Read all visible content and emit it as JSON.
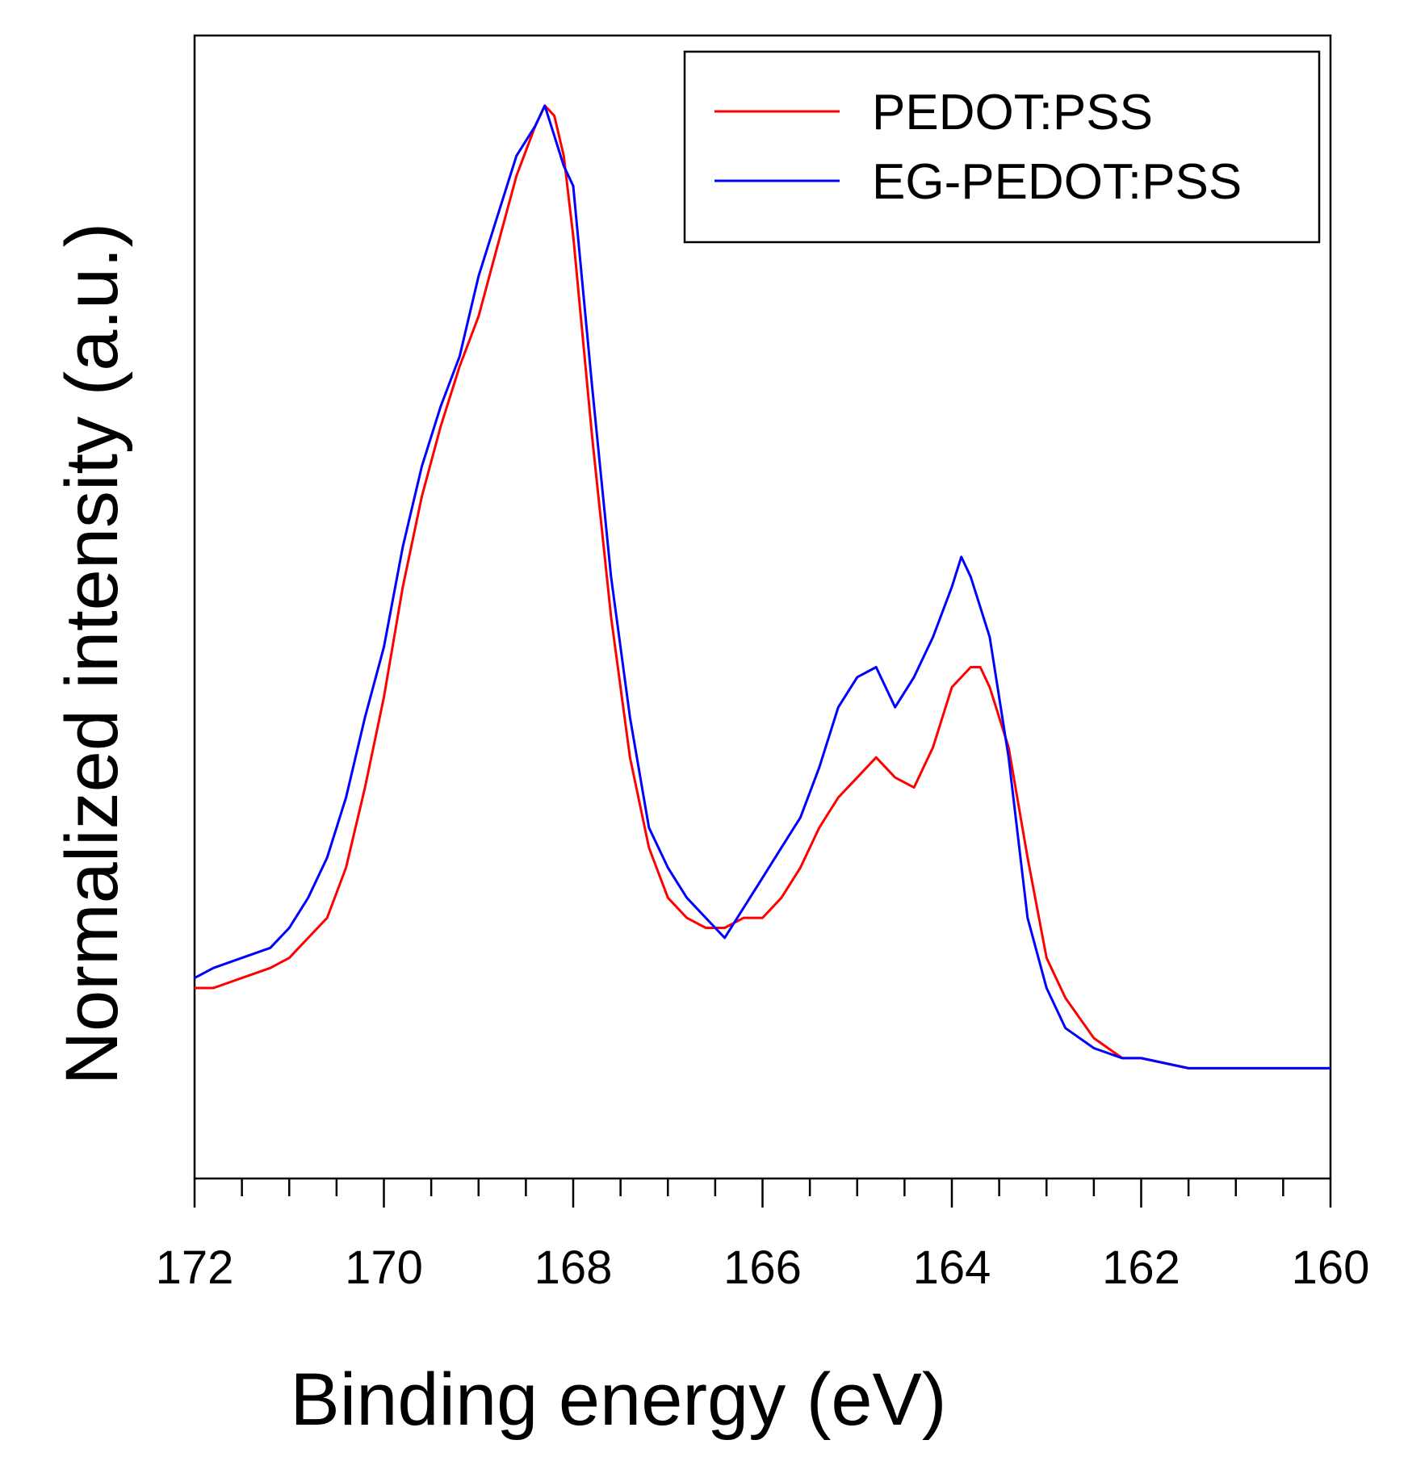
{
  "chart_data": {
    "type": "line",
    "title": "",
    "xlabel": "Binding energy (eV)",
    "ylabel": "Normalized intensity (a.u.)",
    "xlim": [
      172,
      160
    ],
    "x_reversed": true,
    "ylim": [
      -0.06,
      1.08
    ],
    "x_ticks_major": [
      172,
      170,
      168,
      166,
      164,
      162,
      160
    ],
    "x_tick_labels": [
      "172",
      "170",
      "168",
      "166",
      "164",
      "162",
      "160"
    ],
    "x_ticks_minor_step": 0.5,
    "y_ticks": [],
    "legend_position": "top-right",
    "series": [
      {
        "name": "PEDOT:PSS",
        "color": "#ff0000",
        "x": [
          172.0,
          171.8,
          171.5,
          171.2,
          171.0,
          170.8,
          170.6,
          170.4,
          170.2,
          170.0,
          169.8,
          169.6,
          169.4,
          169.2,
          169.0,
          168.8,
          168.6,
          168.4,
          168.3,
          168.2,
          168.1,
          168.0,
          167.8,
          167.6,
          167.4,
          167.2,
          167.0,
          166.8,
          166.6,
          166.4,
          166.2,
          166.0,
          165.8,
          165.6,
          165.4,
          165.2,
          165.0,
          164.8,
          164.6,
          164.4,
          164.2,
          164.0,
          163.8,
          163.7,
          163.6,
          163.4,
          163.2,
          163.0,
          162.8,
          162.5,
          162.2,
          162.0,
          161.5,
          161.0,
          160.5,
          160.0
        ],
        "values": [
          0.13,
          0.13,
          0.14,
          0.15,
          0.16,
          0.18,
          0.2,
          0.25,
          0.33,
          0.42,
          0.53,
          0.62,
          0.69,
          0.75,
          0.8,
          0.87,
          0.94,
          0.99,
          1.01,
          1.0,
          0.96,
          0.88,
          0.68,
          0.5,
          0.36,
          0.27,
          0.22,
          0.2,
          0.19,
          0.19,
          0.2,
          0.2,
          0.22,
          0.25,
          0.29,
          0.32,
          0.34,
          0.36,
          0.34,
          0.33,
          0.37,
          0.43,
          0.45,
          0.45,
          0.43,
          0.37,
          0.26,
          0.16,
          0.12,
          0.08,
          0.06,
          0.06,
          0.05,
          0.05,
          0.05,
          0.05
        ]
      },
      {
        "name": "EG-PEDOT:PSS",
        "color": "#0000ff",
        "x": [
          172.0,
          171.8,
          171.5,
          171.2,
          171.0,
          170.8,
          170.6,
          170.4,
          170.2,
          170.0,
          169.8,
          169.6,
          169.4,
          169.2,
          169.0,
          168.8,
          168.6,
          168.4,
          168.3,
          168.2,
          168.1,
          168.0,
          167.8,
          167.6,
          167.4,
          167.2,
          167.0,
          166.8,
          166.6,
          166.4,
          166.2,
          166.0,
          165.8,
          165.6,
          165.4,
          165.2,
          165.0,
          164.8,
          164.6,
          164.4,
          164.2,
          164.0,
          163.9,
          163.8,
          163.6,
          163.4,
          163.2,
          163.0,
          162.8,
          162.5,
          162.2,
          162.0,
          161.5,
          161.0,
          160.5,
          160.0
        ],
        "values": [
          0.14,
          0.15,
          0.16,
          0.17,
          0.19,
          0.22,
          0.26,
          0.32,
          0.4,
          0.47,
          0.57,
          0.65,
          0.71,
          0.76,
          0.84,
          0.9,
          0.96,
          0.99,
          1.01,
          0.98,
          0.95,
          0.93,
          0.73,
          0.54,
          0.4,
          0.29,
          0.25,
          0.22,
          0.2,
          0.18,
          0.21,
          0.24,
          0.27,
          0.3,
          0.35,
          0.41,
          0.44,
          0.45,
          0.41,
          0.44,
          0.48,
          0.53,
          0.56,
          0.54,
          0.48,
          0.36,
          0.2,
          0.13,
          0.09,
          0.07,
          0.06,
          0.06,
          0.05,
          0.05,
          0.05,
          0.05
        ]
      }
    ]
  }
}
